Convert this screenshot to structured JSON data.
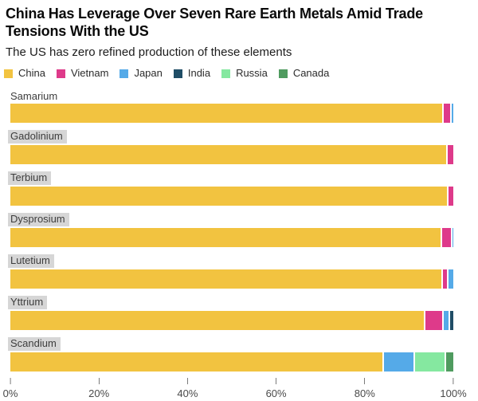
{
  "header": {
    "title": "China Has Leverage Over Seven Rare Earth Metals Amid Trade Tensions With the US",
    "subtitle": "The US has zero refined production of these elements"
  },
  "chart_data": {
    "type": "bar",
    "orientation": "horizontal-stacked",
    "unit": "%",
    "title": "China Has Leverage Over Seven Rare Earth Metals Amid Trade Tensions With the US",
    "subtitle": "The US has zero refined production of these elements",
    "categories": [
      "Samarium",
      "Gadolinium",
      "Terbium",
      "Dysprosium",
      "Lutetium",
      "Yttrium",
      "Scandium"
    ],
    "category_label_highlighted": [
      false,
      true,
      true,
      true,
      true,
      true,
      true
    ],
    "series": [
      {
        "name": "China",
        "color": "#F2C340",
        "values": [
          97.5,
          98.3,
          98.6,
          97.2,
          97.3,
          93.4,
          84.0
        ]
      },
      {
        "name": "Vietnam",
        "color": "#DE3A8A",
        "values": [
          1.7,
          1.7,
          1.4,
          2.2,
          1.3,
          4.0,
          0
        ]
      },
      {
        "name": "Japan",
        "color": "#55AAE8",
        "values": [
          0.8,
          0,
          0,
          0.6,
          1.4,
          1.6,
          7.0
        ]
      },
      {
        "name": "India",
        "color": "#1F4D66",
        "values": [
          0,
          0,
          0,
          0,
          0,
          1.0,
          0
        ]
      },
      {
        "name": "Russia",
        "color": "#85E8A0",
        "values": [
          0,
          0,
          0,
          0,
          0,
          0,
          7.0
        ]
      },
      {
        "name": "Canada",
        "color": "#4F9B5F",
        "values": [
          0,
          0,
          0,
          0,
          0,
          0,
          2.0
        ]
      }
    ],
    "x_ticks": [
      "0%",
      "20%",
      "40%",
      "60%",
      "80%",
      "100%"
    ],
    "x_tick_values": [
      0,
      20,
      40,
      60,
      80,
      100
    ],
    "xlim": [
      0,
      100
    ],
    "xlabel": "",
    "ylabel": "",
    "grid": false,
    "legend_position": "top",
    "legend_entries": [
      "China",
      "Vietnam",
      "Japan",
      "India",
      "Russia",
      "Canada"
    ],
    "colors": {
      "background": "#ffffff",
      "category_label_highlight": "#d6d6d6",
      "axis_text": "#4a4a4a"
    }
  }
}
